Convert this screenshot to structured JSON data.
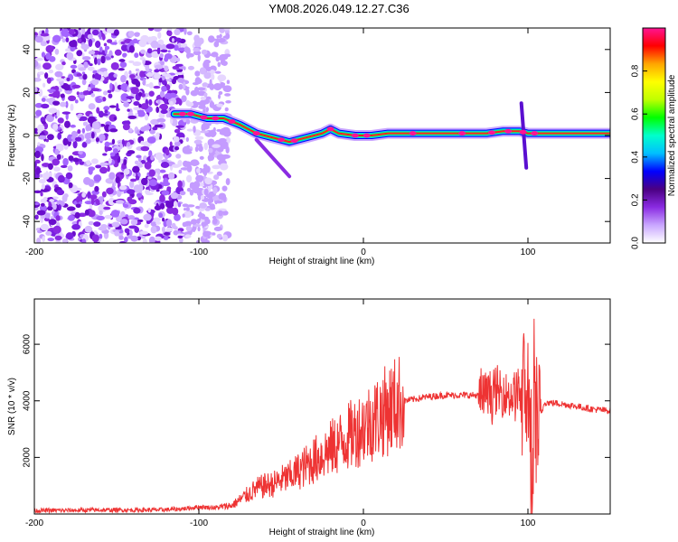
{
  "title": "YM08.2026.049.12.27.C36",
  "chart_data": [
    {
      "type": "heatmap",
      "xlabel": "Height of straight line (km)",
      "ylabel": "Frequency (Hz)",
      "xlim": [
        -200,
        150
      ],
      "ylim": [
        -50,
        50
      ],
      "xticks": [
        -200,
        -100,
        0,
        100
      ],
      "yticks": [
        -40,
        -20,
        0,
        20,
        40
      ],
      "ridge": {
        "x": [
          -115,
          -105,
          -95,
          -85,
          -75,
          -65,
          -55,
          -45,
          -35,
          -25,
          -20,
          -15,
          -5,
          5,
          15,
          25,
          50,
          75,
          85,
          95,
          100,
          110,
          150
        ],
        "frequency": [
          10,
          10,
          8,
          8,
          5,
          1,
          -1,
          -3,
          -1,
          1,
          3,
          1,
          0,
          0,
          1,
          1,
          1,
          1,
          2,
          2,
          1,
          1,
          1
        ]
      },
      "colorbar": {
        "label": "Normalized spectral amplitude",
        "ticks": [
          "0.0",
          "0.2",
          "0.4",
          "0.6",
          "0.8"
        ],
        "stops": [
          "#ffffff",
          "#c9a6ff",
          "#8a2be2",
          "#4b0082",
          "#0000ff",
          "#00bfff",
          "#00ffcc",
          "#00ff00",
          "#bfff00",
          "#ffff00",
          "#ffa500",
          "#ff0000",
          "#ff1493"
        ]
      }
    },
    {
      "type": "line",
      "xlabel": "Height of straight line (km)",
      "ylabel": "SNR (10 * v/v)",
      "xlim": [
        -200,
        150
      ],
      "ylim": [
        0,
        7600
      ],
      "xticks": [
        -200,
        -100,
        0,
        100
      ],
      "yticks": [
        2000,
        4000,
        6000
      ],
      "color": "#ee3333",
      "series": [
        {
          "name": "SNR",
          "x": [
            -200,
            -180,
            -160,
            -140,
            -120,
            -110,
            -100,
            -90,
            -80,
            -75,
            -70,
            -65,
            -60,
            -55,
            -50,
            -45,
            -40,
            -35,
            -30,
            -25,
            -20,
            -15,
            -10,
            -5,
            0,
            5,
            10,
            15,
            20,
            25,
            30,
            40,
            50,
            60,
            70,
            80,
            85,
            90,
            95,
            100,
            102,
            104,
            106,
            110,
            120,
            130,
            140,
            150
          ],
          "y": [
            120,
            130,
            140,
            140,
            150,
            180,
            250,
            220,
            300,
            500,
            700,
            900,
            1000,
            1050,
            1200,
            1300,
            1500,
            1700,
            1900,
            2100,
            2300,
            2500,
            2700,
            2900,
            3100,
            3300,
            3500,
            3700,
            3900,
            4000,
            4050,
            4150,
            4200,
            4200,
            4200,
            4250,
            4300,
            4200,
            4300,
            4300,
            1200,
            4000,
            3000,
            3950,
            3900,
            3800,
            3700,
            3650
          ]
        }
      ]
    }
  ]
}
